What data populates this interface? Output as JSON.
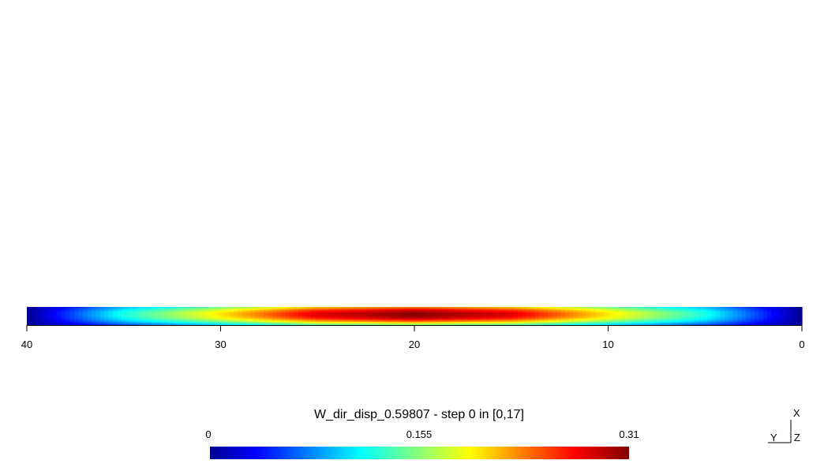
{
  "chart_data": {
    "type": "heatmap",
    "title": "W_dir_disp_0.59807 - step 0 in [0,17]",
    "xlim": [
      40,
      0
    ],
    "x_ticks": [
      {
        "value": 40,
        "label": "40"
      },
      {
        "value": 30,
        "label": "30"
      },
      {
        "value": 20,
        "label": "20"
      },
      {
        "value": 10,
        "label": "10"
      },
      {
        "value": 0,
        "label": "0"
      }
    ],
    "colormap": "jet",
    "colorbar": {
      "min": 0,
      "max": 0.31,
      "labels": [
        "0",
        "0.155",
        "0.31"
      ]
    },
    "field_profile": {
      "description_peak_x": 20,
      "x": [
        0,
        5,
        10,
        15,
        20,
        25,
        30,
        35,
        40
      ],
      "centerline_value": [
        0.0,
        0.12,
        0.2,
        0.28,
        0.31,
        0.28,
        0.2,
        0.12,
        0.0
      ]
    },
    "orientation_axes": {
      "vertical": "X",
      "horizontal": "Y",
      "out_of_plane": "Z"
    }
  }
}
